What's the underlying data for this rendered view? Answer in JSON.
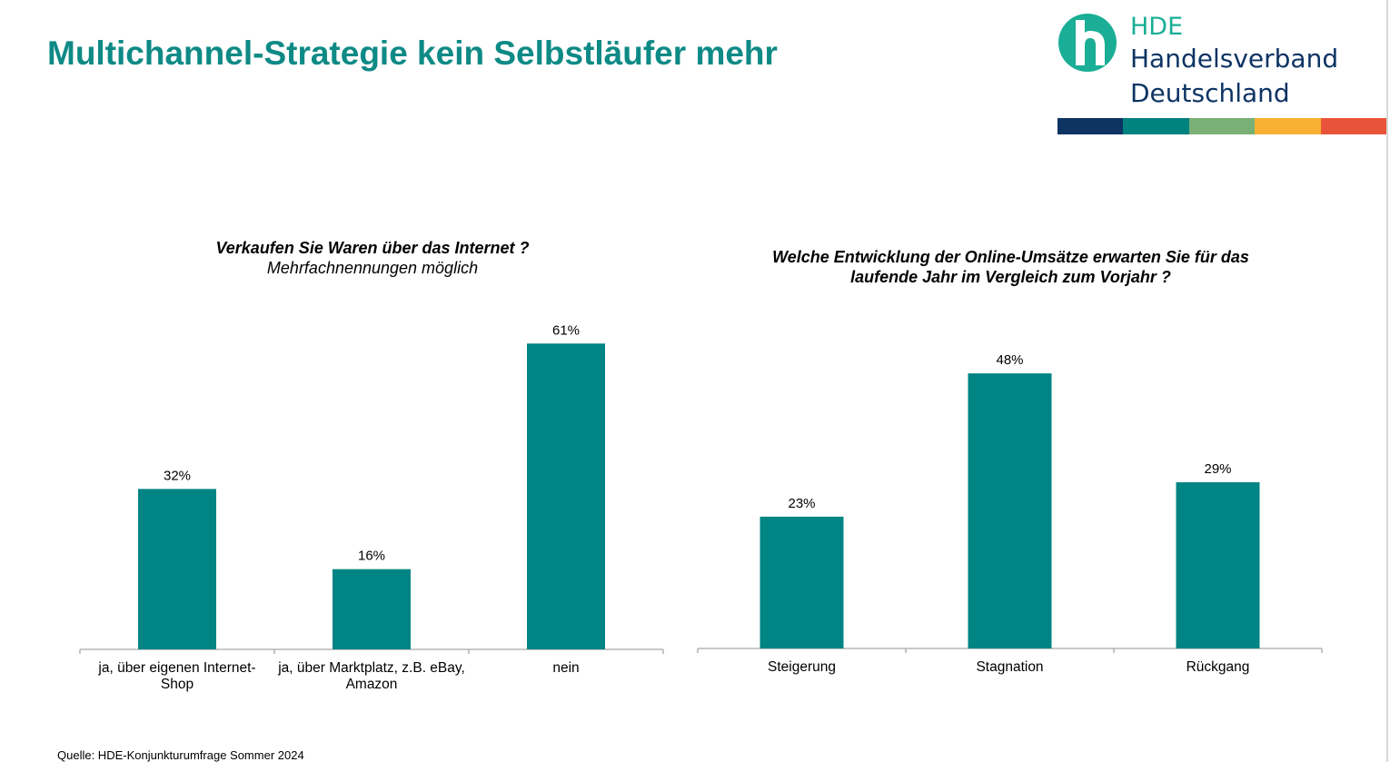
{
  "title": "Multichannel-Strategie kein Selbstläufer mehr",
  "logo": {
    "line1": "HDE",
    "line2": "Handelsverband",
    "line3": "Deutschland",
    "stripe_colors": [
      "#0d3463",
      "#00827f",
      "#78b076",
      "#f7b031",
      "#e9533a"
    ]
  },
  "colors": {
    "bar": "#008484",
    "title": "#0e8a86"
  },
  "source": "Quelle: HDE-Konjunkturumfrage Sommer 2024",
  "chart_data": [
    {
      "type": "bar",
      "title": "Verkaufen Sie Waren über das Internet ?",
      "subtitle": "Mehrfachnennungen möglich",
      "categories": [
        "ja, über eigenen Internet-\nShop",
        "ja, über Marktplatz, z.B. eBay,\nAmazon",
        "nein"
      ],
      "values": [
        32,
        16,
        61
      ],
      "labels": [
        "32%",
        "16%",
        "61%"
      ],
      "unit": "%",
      "grid": false
    },
    {
      "type": "bar",
      "title": "Welche Entwicklung der Online-Umsätze erwarten Sie für das\nlaufende Jahr im Vergleich zum Vorjahr ?",
      "categories": [
        "Steigerung",
        "Stagnation",
        "Rückgang"
      ],
      "values": [
        23,
        48,
        29
      ],
      "labels": [
        "23%",
        "48%",
        "29%"
      ],
      "unit": "%",
      "grid": false
    }
  ]
}
